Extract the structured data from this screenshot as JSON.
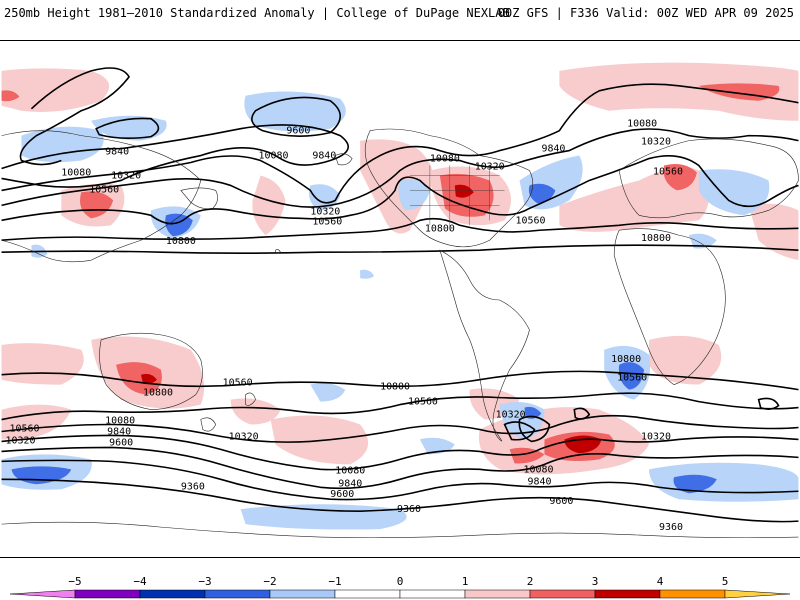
{
  "header": {
    "title": "250mb Height 1981–2010 Standardized Anomaly | College of DuPage NEXLAB",
    "run_info": "00Z GFS | F336 Valid: 00Z WED APR 09 2025"
  },
  "map": {
    "projection": "global cylindrical",
    "contour_labels": [
      {
        "id": "c-9600-np",
        "text": "9600"
      },
      {
        "id": "c-9840-pac",
        "text": "9840"
      },
      {
        "id": "c-10080-np",
        "text": "10080"
      },
      {
        "id": "c-9840-np2",
        "text": "9840"
      },
      {
        "id": "c-10080-asia",
        "text": "10080"
      },
      {
        "id": "c-10320-asia",
        "text": "10320"
      },
      {
        "id": "c-10560-asia",
        "text": "10560"
      },
      {
        "id": "c-10800-pac",
        "text": "10800"
      },
      {
        "id": "c-10320-pac",
        "text": "10320"
      },
      {
        "id": "c-10560-pac",
        "text": "10560"
      },
      {
        "id": "c-10080-na",
        "text": "10080"
      },
      {
        "id": "c-10320-na",
        "text": "10320"
      },
      {
        "id": "c-10800-na",
        "text": "10800"
      },
      {
        "id": "c-9840-atl",
        "text": "9840"
      },
      {
        "id": "c-10560-atl",
        "text": "10560"
      },
      {
        "id": "c-10080-eu",
        "text": "10080"
      },
      {
        "id": "c-10320-eu",
        "text": "10320"
      },
      {
        "id": "c-10560-eu",
        "text": "10560"
      },
      {
        "id": "c-10800-af",
        "text": "10800"
      },
      {
        "id": "c-10800-sa",
        "text": "10800"
      },
      {
        "id": "c-10560-sa",
        "text": "10560"
      },
      {
        "id": "c-10800-sio",
        "text": "10800"
      },
      {
        "id": "c-10560-sio",
        "text": "10560"
      },
      {
        "id": "c-10800-aus",
        "text": "10800"
      },
      {
        "id": "c-10560-aus",
        "text": "10560"
      },
      {
        "id": "c-10560-w",
        "text": "10560"
      },
      {
        "id": "c-10320-w",
        "text": "10320"
      },
      {
        "id": "c-10080-sp",
        "text": "10080"
      },
      {
        "id": "c-9840-sp",
        "text": "9840"
      },
      {
        "id": "c-9600-sp",
        "text": "9600"
      },
      {
        "id": "c-10320-sp",
        "text": "10320"
      },
      {
        "id": "c-9360-sp",
        "text": "9360"
      },
      {
        "id": "c-10080-sp2",
        "text": "10080"
      },
      {
        "id": "c-9840-sp2",
        "text": "9840"
      },
      {
        "id": "c-9600-sp2",
        "text": "9600"
      },
      {
        "id": "c-9360-sp2",
        "text": "9360"
      },
      {
        "id": "c-10320-sa2",
        "text": "10320"
      },
      {
        "id": "c-10080-sa2",
        "text": "10080"
      },
      {
        "id": "c-9840-sa2",
        "text": "9840"
      },
      {
        "id": "c-10320-sao",
        "text": "10320"
      },
      {
        "id": "c-9600-sao",
        "text": "9600"
      },
      {
        "id": "c-9360-sao",
        "text": "9360"
      }
    ]
  },
  "colorbar": {
    "ticks": [
      "−5",
      "−4",
      "−3",
      "−2",
      "−1",
      "0",
      "1",
      "2",
      "3",
      "4",
      "5"
    ],
    "colors": [
      "#f080f0",
      "#8000c0",
      "#0030b0",
      "#3060e0",
      "#a8c8f8",
      "#ffffff",
      "#ffffff",
      "#f8c8c8",
      "#f06060",
      "#c00000",
      "#ff9000",
      "#ffd040"
    ]
  }
}
